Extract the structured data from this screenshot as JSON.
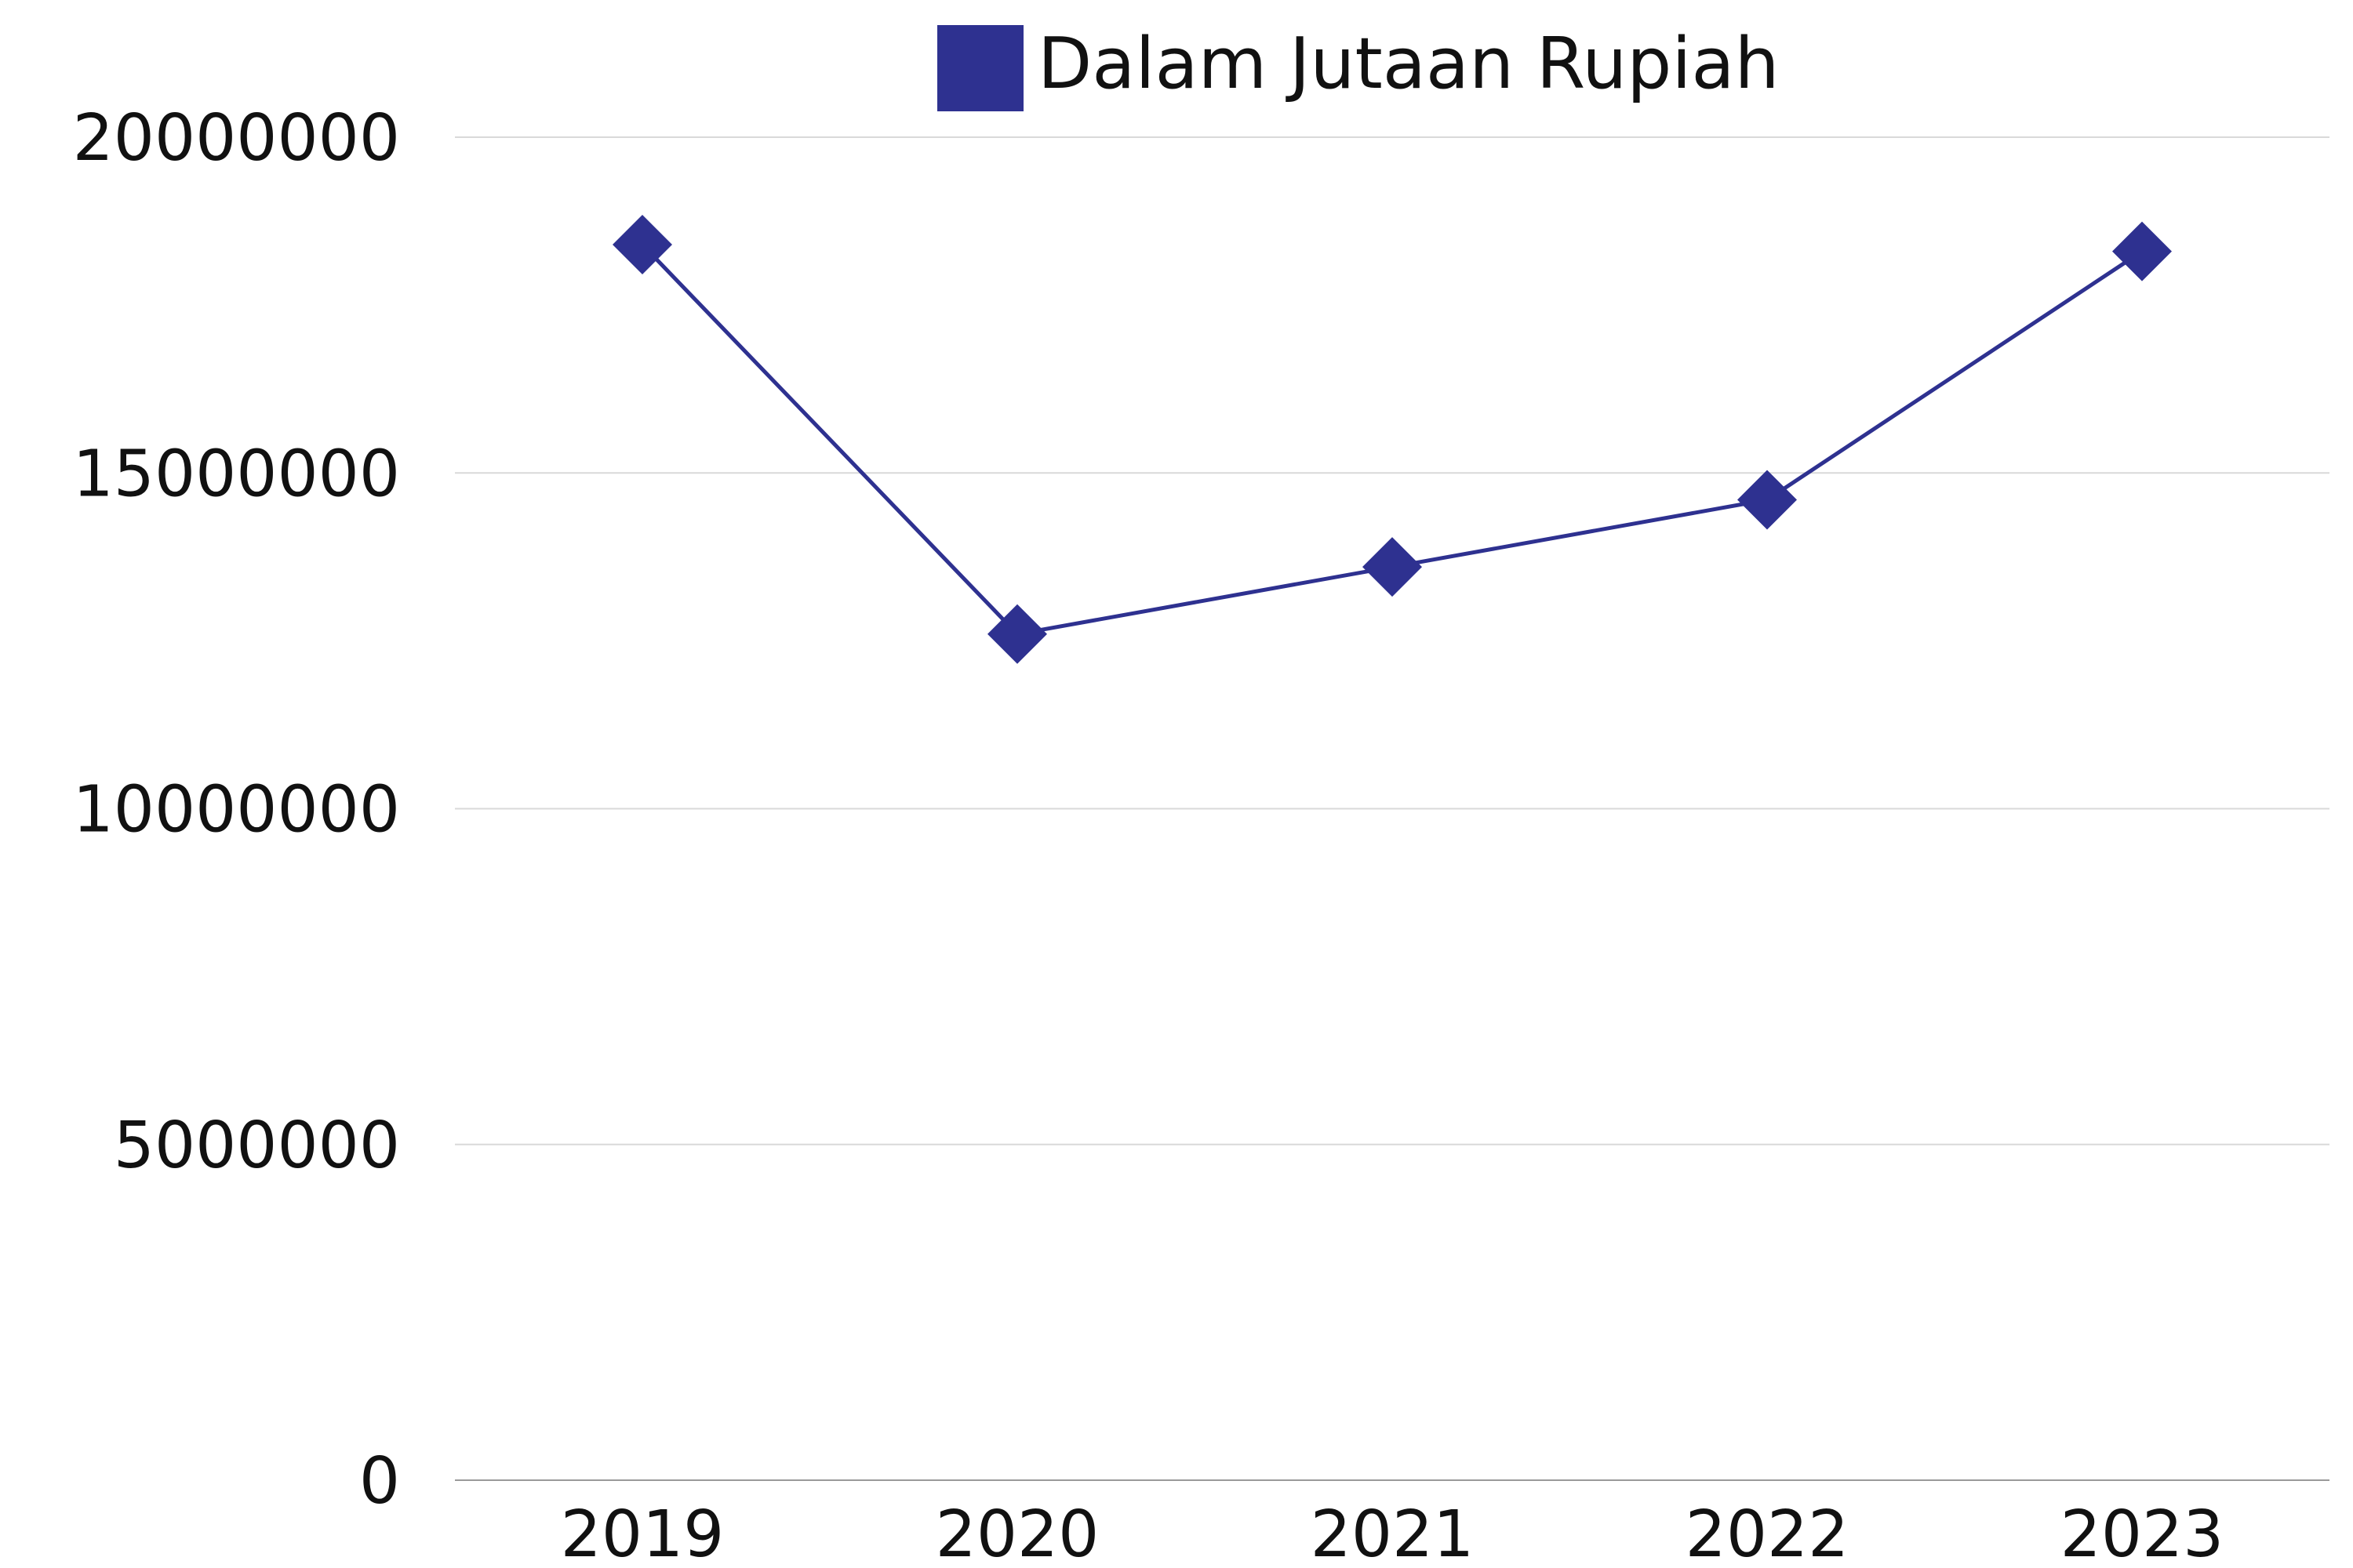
{
  "chart_data": {
    "type": "line",
    "categories": [
      "2019",
      "2020",
      "2021",
      "2022",
      "2023"
    ],
    "series": [
      {
        "name": "Dalam Jutaan Rupiah",
        "values": [
          18400000,
          12600000,
          13600000,
          14600000,
          18300000
        ],
        "color": "#2e3190",
        "marker": "diamond"
      }
    ],
    "y_ticks": [
      "0",
      "5000000",
      "10000000",
      "15000000",
      "20000000"
    ],
    "ylim": [
      0,
      20000000
    ],
    "grid": true,
    "legend": "top-center"
  }
}
